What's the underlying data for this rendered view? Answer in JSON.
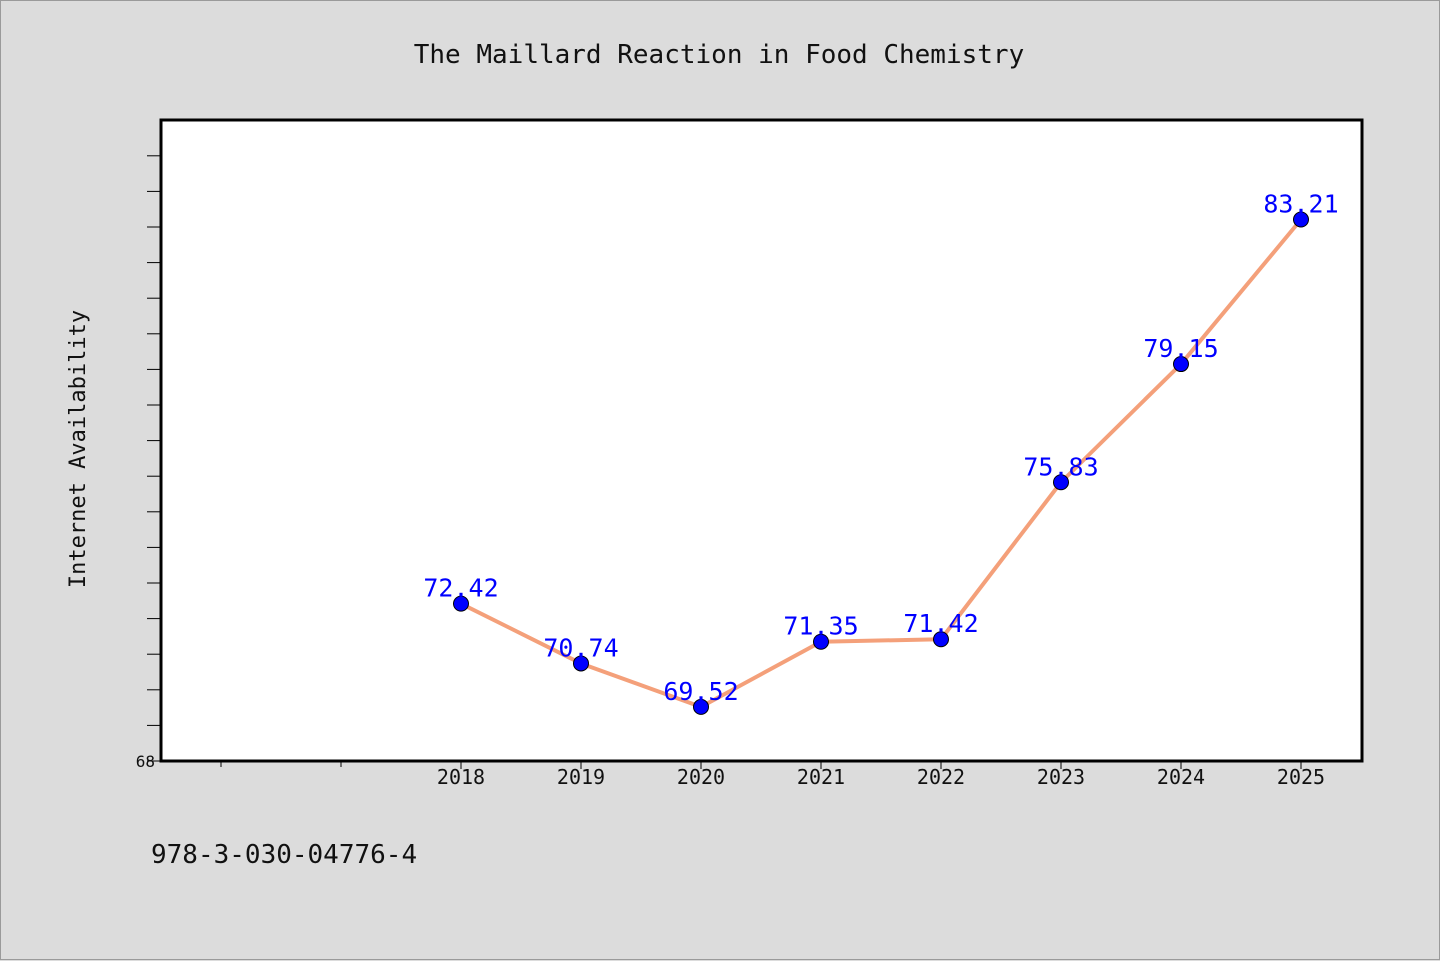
{
  "chart_data": {
    "type": "line",
    "title": "The Maillard Reaction in Food Chemistry",
    "xlabel": "",
    "ylabel": "Internet Availability",
    "categories": [
      "2018",
      "2019",
      "2020",
      "2021",
      "2022",
      "2023",
      "2024",
      "2025"
    ],
    "series": [
      {
        "values": [
          72.42,
          70.74,
          69.52,
          71.35,
          71.42,
          75.83,
          79.15,
          83.21
        ],
        "labels": [
          "72.42",
          "70.74",
          "69.52",
          "71.35",
          "71.42",
          "75.83",
          "79.15",
          "83.21"
        ],
        "line_color": "#f4a07a",
        "marker_color": "#0000ff"
      }
    ],
    "ylim": [
      68,
      86
    ],
    "ytick_labels": [
      "68"
    ],
    "grid": false,
    "legend": "none"
  },
  "footer_text": "978-3-030-04776-4"
}
